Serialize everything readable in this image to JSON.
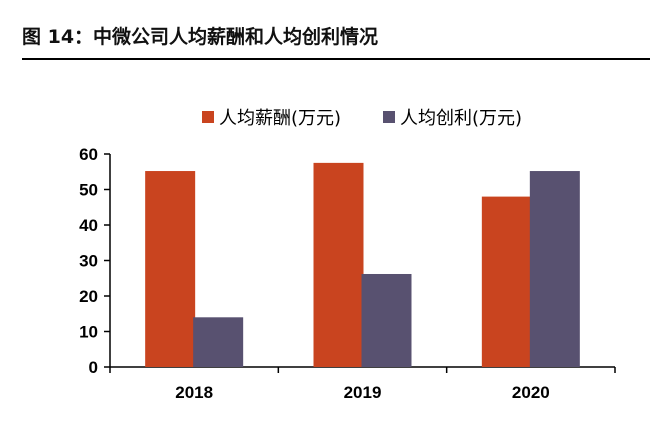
{
  "figure": {
    "title": "图 14：中微公司人均薪酬和人均创利情况"
  },
  "chart_data": {
    "type": "bar",
    "categories": [
      "2018",
      "2019",
      "2020"
    ],
    "series": [
      {
        "name": "人均薪酬(万元)",
        "values": [
          55.2,
          57.5,
          48.0
        ],
        "color": "#C9441F"
      },
      {
        "name": "人均创利(万元)",
        "values": [
          14.0,
          26.2,
          55.2
        ],
        "color": "#585170"
      }
    ],
    "yticks": [
      "0",
      "10",
      "20",
      "30",
      "40",
      "50",
      "60"
    ],
    "ylim": [
      0,
      60
    ],
    "grid": false,
    "legend_position": "top"
  }
}
